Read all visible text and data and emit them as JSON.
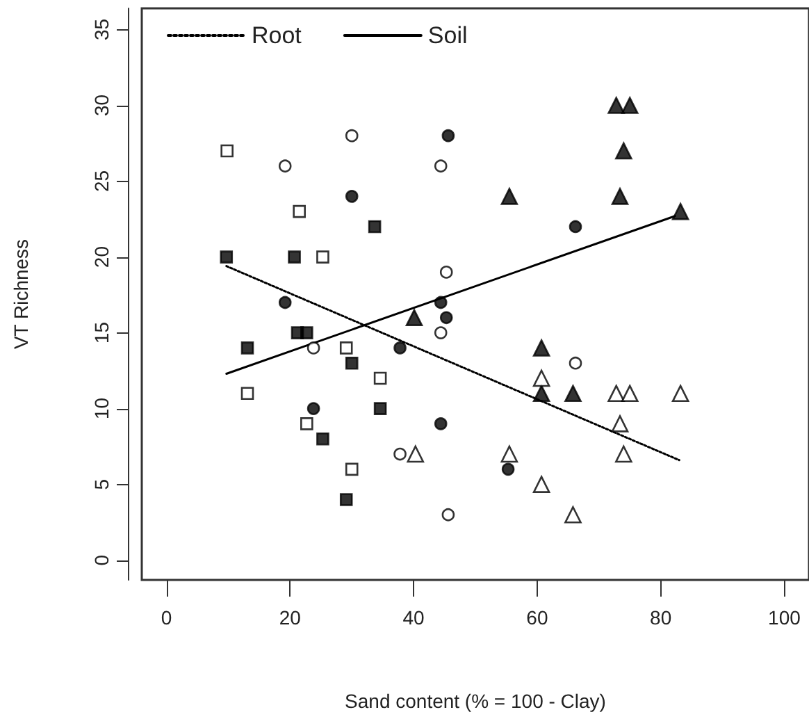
{
  "chart_data": {
    "type": "scatter",
    "xlabel": "Sand content (% = 100 - Clay)",
    "ylabel": "VT Richness",
    "xlim": [
      -4,
      104
    ],
    "xticks": [
      0,
      20,
      40,
      60,
      80,
      100
    ],
    "ylim": [
      -1.3,
      36.4
    ],
    "yticks": [
      0,
      5,
      10,
      15,
      20,
      25,
      30,
      35
    ],
    "legend": "top left",
    "series": [
      {
        "marker": "square",
        "color": "#000000",
        "x": [
          9.7,
          20.7,
          13.1,
          21.2,
          22.7,
          33.7,
          30.0,
          34.6,
          25.3,
          29.1
        ],
        "values": [
          20,
          20,
          14,
          15,
          15,
          22,
          13,
          10,
          8,
          4
        ]
      },
      {
        "marker": "square",
        "color": "#ffffff",
        "x": [
          9.8,
          21.5,
          25.3,
          13.1,
          29.1,
          34.6,
          22.7,
          30.0
        ],
        "values": [
          27,
          23,
          20,
          11,
          14,
          12,
          9,
          6
        ]
      },
      {
        "marker": "circle",
        "color": "#000000",
        "x": [
          45.6,
          30.0,
          19.2,
          37.8,
          44.4,
          45.3,
          23.8,
          44.4,
          66.2,
          55.3
        ],
        "values": [
          28,
          24,
          17,
          14,
          17,
          16,
          10,
          9,
          22,
          6
        ]
      },
      {
        "marker": "circle",
        "color": "#ffffff",
        "x": [
          30.0,
          19.2,
          44.4,
          45.3,
          44.4,
          23.8,
          37.8,
          45.6,
          66.2
        ],
        "values": [
          28,
          26,
          26,
          19,
          15,
          14,
          7,
          3,
          13
        ]
      },
      {
        "marker": "triangle",
        "color": "#000000",
        "x": [
          40.1,
          72.8,
          75.0,
          74.0,
          55.5,
          73.4,
          83.2,
          60.7,
          60.7,
          65.8
        ],
        "values": [
          16,
          30,
          30,
          27,
          24,
          24,
          23,
          14,
          11,
          11
        ]
      },
      {
        "marker": "triangle",
        "color": "#ffffff",
        "x": [
          40.3,
          55.5,
          60.7,
          60.7,
          65.8,
          72.8,
          75.0,
          83.2,
          73.4,
          74.0
        ],
        "values": [
          7,
          7,
          12,
          5,
          3,
          11,
          11,
          11,
          9,
          7
        ]
      },
      {
        "type": "line",
        "name": "Root",
        "line_style": "dotted",
        "marker": "none",
        "color": "#000000",
        "x": [
          9.7,
          83.0
        ],
        "values": [
          19.4,
          6.6
        ]
      },
      {
        "type": "line",
        "name": "Soil",
        "line_style": "solid",
        "marker": "none",
        "color": "#000000",
        "x": [
          9.7,
          82.3
        ],
        "values": [
          12.3,
          22.7
        ]
      }
    ]
  }
}
